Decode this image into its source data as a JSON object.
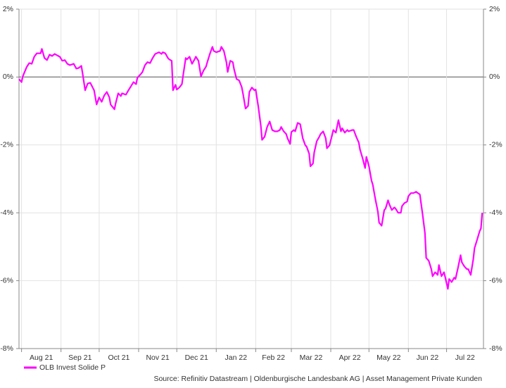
{
  "chart_data": {
    "type": "line",
    "source": "Source: Refinitiv Datastream | Oldenburgische Landesbank AG | Asset Management Private Kunden",
    "x": [
      0,
      2,
      3,
      6,
      8,
      10,
      12,
      14,
      17,
      18,
      20,
      22,
      24,
      26,
      28,
      30,
      32,
      34,
      36,
      38,
      40,
      43,
      45,
      47,
      49,
      50,
      52,
      54,
      56,
      59,
      61,
      63,
      65,
      67,
      69,
      71,
      72,
      75,
      76,
      78,
      80,
      81,
      84,
      86,
      88,
      90,
      92,
      93,
      96,
      97,
      99,
      101,
      103,
      105,
      107,
      110,
      112,
      113,
      115,
      117,
      118,
      120,
      121,
      123,
      124,
      126,
      128,
      129,
      131,
      132,
      134,
      136,
      138,
      139,
      141,
      143,
      145,
      147,
      148,
      150,
      152,
      153,
      155,
      158,
      159,
      161,
      163,
      164,
      166,
      168,
      169,
      171,
      173,
      175,
      176,
      178,
      180,
      181,
      183,
      185,
      186,
      188,
      190,
      191,
      193,
      195,
      197,
      199,
      201,
      203,
      205,
      206,
      208,
      210,
      211,
      213,
      214,
      216,
      217,
      219,
      221,
      223,
      225,
      226,
      228,
      229,
      231,
      232,
      234,
      236,
      237,
      239,
      241,
      242,
      244,
      246,
      247,
      249,
      251,
      253,
      254,
      256,
      258,
      259,
      262,
      263,
      265,
      267,
      268,
      270,
      272,
      273,
      275,
      277,
      278,
      280,
      282,
      283,
      285,
      287,
      288,
      290,
      291,
      293,
      295,
      296,
      298,
      300,
      301,
      303,
      305,
      306,
      308,
      310,
      312,
      315,
      317,
      319,
      320,
      322,
      324,
      325,
      327,
      329,
      330,
      332,
      334,
      335,
      337,
      338,
      340,
      342,
      343,
      345,
      347,
      348,
      350,
      352,
      353,
      355,
      357,
      358,
      360,
      362,
      363,
      364
    ],
    "series": [
      {
        "name": "OLB Invest Solide P",
        "color": "#ff00ff",
        "values": [
          -0.06,
          -0.15,
          0.02,
          0.29,
          0.41,
          0.39,
          0.6,
          0.7,
          0.7,
          0.83,
          0.56,
          0.5,
          0.66,
          0.62,
          0.68,
          0.64,
          0.6,
          0.48,
          0.5,
          0.39,
          0.35,
          0.39,
          0.25,
          0.27,
          0.33,
          0.1,
          -0.39,
          -0.19,
          -0.17,
          -0.39,
          -0.81,
          -0.6,
          -0.73,
          -0.54,
          -0.44,
          -0.6,
          -0.81,
          -0.95,
          -0.77,
          -0.48,
          -0.56,
          -0.48,
          -0.52,
          -0.39,
          -0.27,
          -0.15,
          -0.21,
          -0.02,
          0.1,
          0.15,
          0.35,
          0.44,
          0.41,
          0.56,
          0.68,
          0.73,
          0.68,
          0.73,
          0.7,
          0.56,
          0.52,
          0.48,
          -0.39,
          -0.23,
          -0.37,
          -0.31,
          -0.21,
          0.06,
          0.56,
          0.52,
          0.6,
          0.39,
          0.52,
          0.6,
          0.48,
          0.02,
          0.19,
          0.31,
          0.44,
          0.68,
          0.89,
          0.77,
          0.73,
          0.77,
          0.89,
          0.77,
          0.44,
          0.15,
          0.48,
          0.44,
          0.23,
          -0.06,
          -0.1,
          -0.29,
          -0.48,
          -0.93,
          -0.85,
          -0.44,
          -0.31,
          -0.39,
          -0.37,
          -0.85,
          -1.43,
          -1.85,
          -1.76,
          -1.47,
          -1.31,
          -1.56,
          -1.6,
          -1.6,
          -1.56,
          -1.47,
          -1.6,
          -1.68,
          -1.8,
          -1.97,
          -1.62,
          -1.56,
          -1.6,
          -1.35,
          -1.39,
          -1.8,
          -2.01,
          -2.05,
          -2.26,
          -2.63,
          -2.55,
          -2.22,
          -1.89,
          -1.76,
          -1.68,
          -1.6,
          -1.8,
          -2.1,
          -2.01,
          -1.72,
          -1.56,
          -1.64,
          -1.27,
          -1.6,
          -1.51,
          -1.64,
          -1.56,
          -1.6,
          -1.56,
          -1.56,
          -1.76,
          -1.93,
          -2.14,
          -2.39,
          -2.68,
          -2.35,
          -2.63,
          -3.05,
          -3.17,
          -3.59,
          -3.96,
          -4.29,
          -4.38,
          -3.92,
          -3.88,
          -3.63,
          -3.75,
          -3.92,
          -3.84,
          -3.88,
          -4.0,
          -4.0,
          -3.8,
          -3.71,
          -3.67,
          -3.51,
          -3.42,
          -3.42,
          -3.38,
          -3.46,
          -4.0,
          -4.59,
          -5.33,
          -5.41,
          -5.66,
          -5.87,
          -5.75,
          -5.83,
          -5.54,
          -5.87,
          -5.75,
          -5.91,
          -6.24,
          -5.95,
          -6.04,
          -5.91,
          -5.95,
          -5.62,
          -5.25,
          -5.46,
          -5.58,
          -5.66,
          -5.66,
          -5.83,
          -5.37,
          -5.04,
          -4.79,
          -4.54,
          -4.46,
          -4.0
        ]
      }
    ],
    "xlim": [
      0,
      365
    ],
    "xticks": [
      {
        "value": 2,
        "label": "Aug 21"
      },
      {
        "value": 33,
        "label": "Sep 21"
      },
      {
        "value": 63,
        "label": "Oct 21"
      },
      {
        "value": 94,
        "label": "Nov 21"
      },
      {
        "value": 124,
        "label": "Dec 21"
      },
      {
        "value": 155,
        "label": "Jan 22"
      },
      {
        "value": 186,
        "label": "Feb 22"
      },
      {
        "value": 214,
        "label": "Mar 22"
      },
      {
        "value": 245,
        "label": "Apr 22"
      },
      {
        "value": 275,
        "label": "May 22"
      },
      {
        "value": 306,
        "label": "Jun 22"
      },
      {
        "value": 336,
        "label": "Jul 22"
      }
    ],
    "ylim": [
      -8,
      2
    ],
    "yticks": [
      {
        "value": 2,
        "label": "2%"
      },
      {
        "value": 0,
        "label": "0%"
      },
      {
        "value": -2,
        "label": "-2%"
      },
      {
        "value": -4,
        "label": "-4%"
      },
      {
        "value": -6,
        "label": "-6%"
      },
      {
        "value": -8,
        "label": "-8%"
      }
    ],
    "y2lim": [
      -8,
      2
    ],
    "y2ticks": [
      {
        "value": 2,
        "label": "2%"
      },
      {
        "value": 0,
        "label": "0%"
      },
      {
        "value": -2,
        "label": "-2%"
      },
      {
        "value": -4,
        "label": "-4%"
      },
      {
        "value": -6,
        "label": "-6%"
      },
      {
        "value": -8,
        "label": "-8%"
      }
    ],
    "grid": true,
    "legend": "bottom-left"
  }
}
